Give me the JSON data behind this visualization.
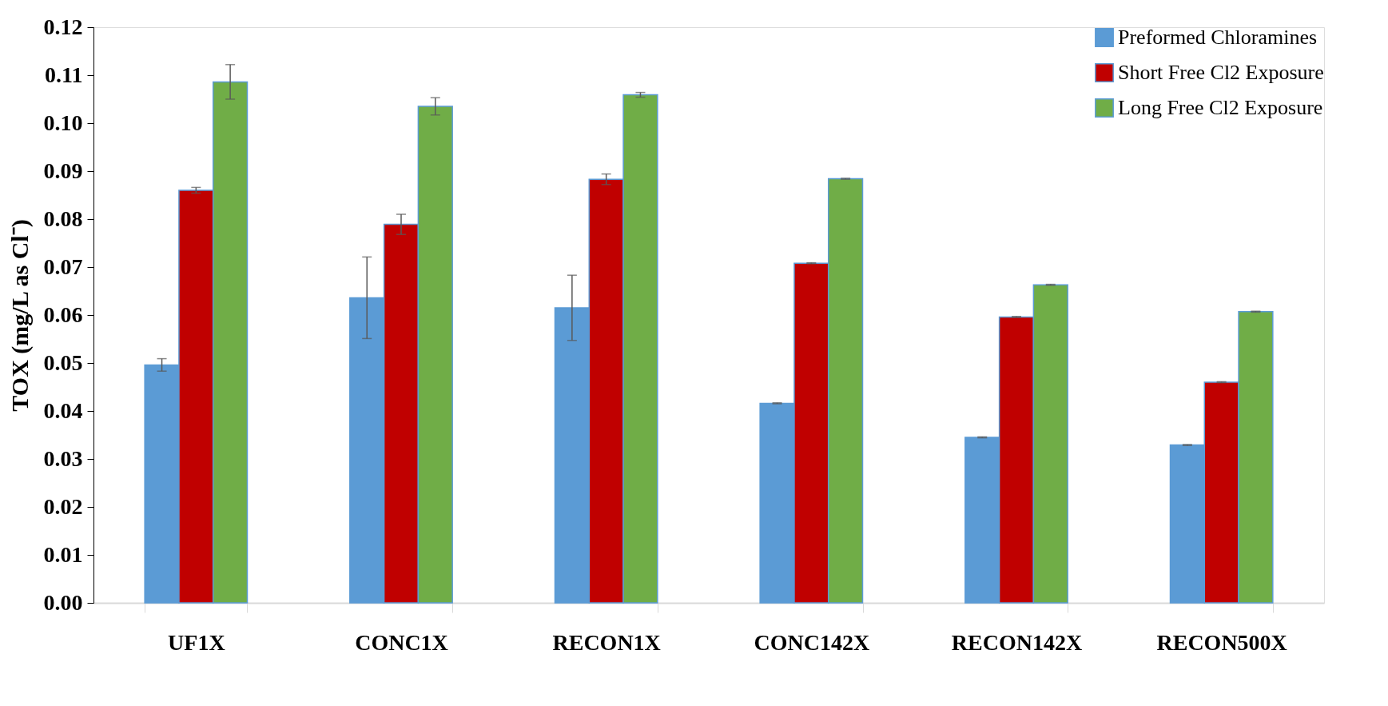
{
  "chart_data": {
    "type": "bar",
    "ylabel": "TOX (mg/L as Cl⁻)",
    "categories": [
      "UF1X",
      "CONC1X",
      "RECON1X",
      "CONC142X",
      "RECON142X",
      "RECON500X"
    ],
    "series": [
      {
        "name": "Preformed Chloramines",
        "color": "#5b9bd5",
        "values": [
          0.0496,
          0.0636,
          0.0615,
          0.0416,
          0.0345,
          0.0329
        ],
        "errors": [
          0.0013,
          0.0085,
          0.0068,
          0.0001,
          0.0001,
          0.0001
        ]
      },
      {
        "name": "Short Free Cl2 Exposure",
        "color": "#c00000",
        "values": [
          0.086,
          0.0789,
          0.0883,
          0.0708,
          0.0596,
          0.046
        ],
        "errors": [
          0.0006,
          0.0021,
          0.0011,
          0.0001,
          0.0001,
          0.0001
        ]
      },
      {
        "name": "Long Free Cl2 Exposure",
        "color": "#70ad47",
        "values": [
          0.1086,
          0.1035,
          0.1059,
          0.0884,
          0.0663,
          0.0607
        ],
        "errors": [
          0.0036,
          0.0018,
          0.0005,
          0.0001,
          0.0001,
          0.0001
        ]
      }
    ],
    "ylim": [
      0,
      0.12
    ],
    "yticks": [
      {
        "value": 0,
        "label": "0.00"
      },
      {
        "value": 0.01,
        "label": "0.01"
      },
      {
        "value": 0.02,
        "label": "0.02"
      },
      {
        "value": 0.03,
        "label": "0.03"
      },
      {
        "value": 0.04,
        "label": "0.04"
      },
      {
        "value": 0.05,
        "label": "0.05"
      },
      {
        "value": 0.06,
        "label": "0.06"
      },
      {
        "value": 0.07,
        "label": "0.07"
      },
      {
        "value": 0.08,
        "label": "0.08"
      },
      {
        "value": 0.09,
        "label": "0.09"
      },
      {
        "value": 0.1,
        "label": "0.10"
      },
      {
        "value": 0.11,
        "label": "0.11"
      },
      {
        "value": 0.12,
        "label": "0.12"
      }
    ],
    "grid": false,
    "legend": "top right"
  }
}
